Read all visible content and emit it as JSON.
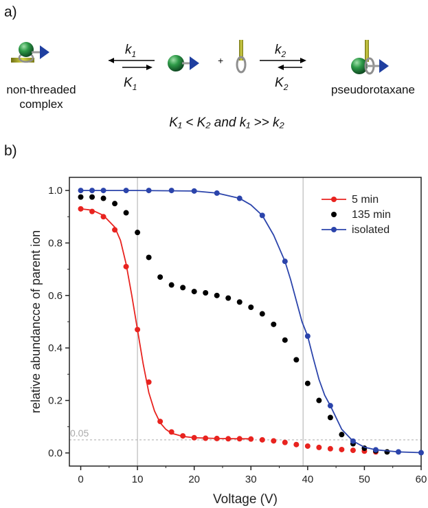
{
  "panel_a": {
    "label": "a)",
    "left_caption_line1": "non-threaded",
    "left_caption_line2": "complex",
    "right_caption": "pseudorotaxane",
    "plus": "+",
    "k1": "k",
    "k1_sub": "1",
    "K1": "K",
    "K1_sub": "1",
    "k2": "k",
    "k2_sub": "2",
    "K2": "K",
    "K2_sub": "2",
    "condition": "K₁ < K₂ and k₁ >> k₂",
    "colors": {
      "sphere": "#1f7a3a",
      "cone": "#1f3fa0",
      "axle": "#b5b52a",
      "ring": "#999999"
    }
  },
  "panel_b": {
    "label": "b)"
  },
  "chart_data": {
    "type": "line",
    "xlabel": "Voltage (V)",
    "ylabel": "relative abundancce of parent ion",
    "xlim": [
      -2,
      60
    ],
    "ylim": [
      -0.05,
      1.05
    ],
    "xticks": [
      0,
      10,
      20,
      30,
      40,
      50,
      60
    ],
    "yticks": [
      0.0,
      0.2,
      0.4,
      0.6,
      0.8,
      1.0
    ],
    "xtick_labels": [
      "0",
      "10",
      "20",
      "30",
      "40",
      "50",
      "60"
    ],
    "ytick_labels": [
      "0.0",
      "0.2",
      "0.4",
      "0.6",
      "0.8",
      "1.0"
    ],
    "threshold": {
      "y": 0.05,
      "label": "0.05",
      "color": "#aaaaaa"
    },
    "vlines": [
      10,
      39.2
    ],
    "legend_position": "top-right",
    "series": [
      {
        "name": "5 min",
        "color": "#e8231f",
        "marker": "dot",
        "line": true,
        "x": [
          0,
          2,
          4,
          6,
          8,
          10,
          12,
          14,
          16,
          18,
          20,
          22,
          24,
          26,
          28,
          30,
          32,
          34,
          36,
          38,
          40,
          42,
          44,
          46,
          48,
          50,
          52
        ],
        "y": [
          0.93,
          0.92,
          0.9,
          0.85,
          0.71,
          0.47,
          0.27,
          0.12,
          0.08,
          0.065,
          0.058,
          0.056,
          0.055,
          0.054,
          0.054,
          0.053,
          0.05,
          0.046,
          0.04,
          0.032,
          0.026,
          0.021,
          0.016,
          0.013,
          0.01,
          0.007,
          0.004
        ],
        "fit_x": [
          0,
          2,
          4,
          6,
          7,
          8,
          9,
          10,
          11,
          12,
          13,
          14,
          15,
          16,
          18,
          20,
          24,
          28,
          30
        ],
        "fit_y": [
          0.93,
          0.925,
          0.905,
          0.86,
          0.81,
          0.72,
          0.6,
          0.47,
          0.34,
          0.23,
          0.16,
          0.115,
          0.09,
          0.075,
          0.063,
          0.058,
          0.055,
          0.054,
          0.054
        ]
      },
      {
        "name": "135 min",
        "color": "#000000",
        "marker": "dot",
        "line": false,
        "x": [
          0,
          2,
          4,
          6,
          8,
          10,
          12,
          14,
          16,
          18,
          20,
          22,
          24,
          26,
          28,
          30,
          32,
          34,
          36,
          38,
          40,
          42,
          44,
          46,
          48,
          50,
          52,
          54
        ],
        "y": [
          0.975,
          0.975,
          0.97,
          0.95,
          0.915,
          0.84,
          0.745,
          0.67,
          0.64,
          0.63,
          0.615,
          0.61,
          0.6,
          0.59,
          0.575,
          0.555,
          0.53,
          0.49,
          0.43,
          0.355,
          0.265,
          0.2,
          0.135,
          0.07,
          0.035,
          0.018,
          0.008,
          0.004
        ]
      },
      {
        "name": "isolated",
        "color": "#2b44ab",
        "marker": "dot",
        "line": true,
        "x": [
          0,
          2,
          4,
          8,
          12,
          16,
          20,
          24,
          28,
          32,
          36,
          40,
          44,
          48,
          52,
          56,
          60
        ],
        "y": [
          1.0,
          1.0,
          1.0,
          1.0,
          1.0,
          1.0,
          0.998,
          0.99,
          0.97,
          0.905,
          0.73,
          0.445,
          0.18,
          0.045,
          0.012,
          0.004,
          0.001
        ],
        "fit_x": [
          0,
          10,
          20,
          24,
          28,
          30,
          32,
          34,
          36,
          37,
          38,
          39,
          40,
          41,
          42,
          43,
          44,
          46,
          48,
          50,
          52,
          56,
          60
        ],
        "fit_y": [
          1.0,
          1.0,
          0.998,
          0.99,
          0.97,
          0.945,
          0.905,
          0.83,
          0.73,
          0.66,
          0.58,
          0.5,
          0.445,
          0.36,
          0.28,
          0.22,
          0.18,
          0.09,
          0.045,
          0.022,
          0.012,
          0.004,
          0.001
        ]
      }
    ]
  }
}
